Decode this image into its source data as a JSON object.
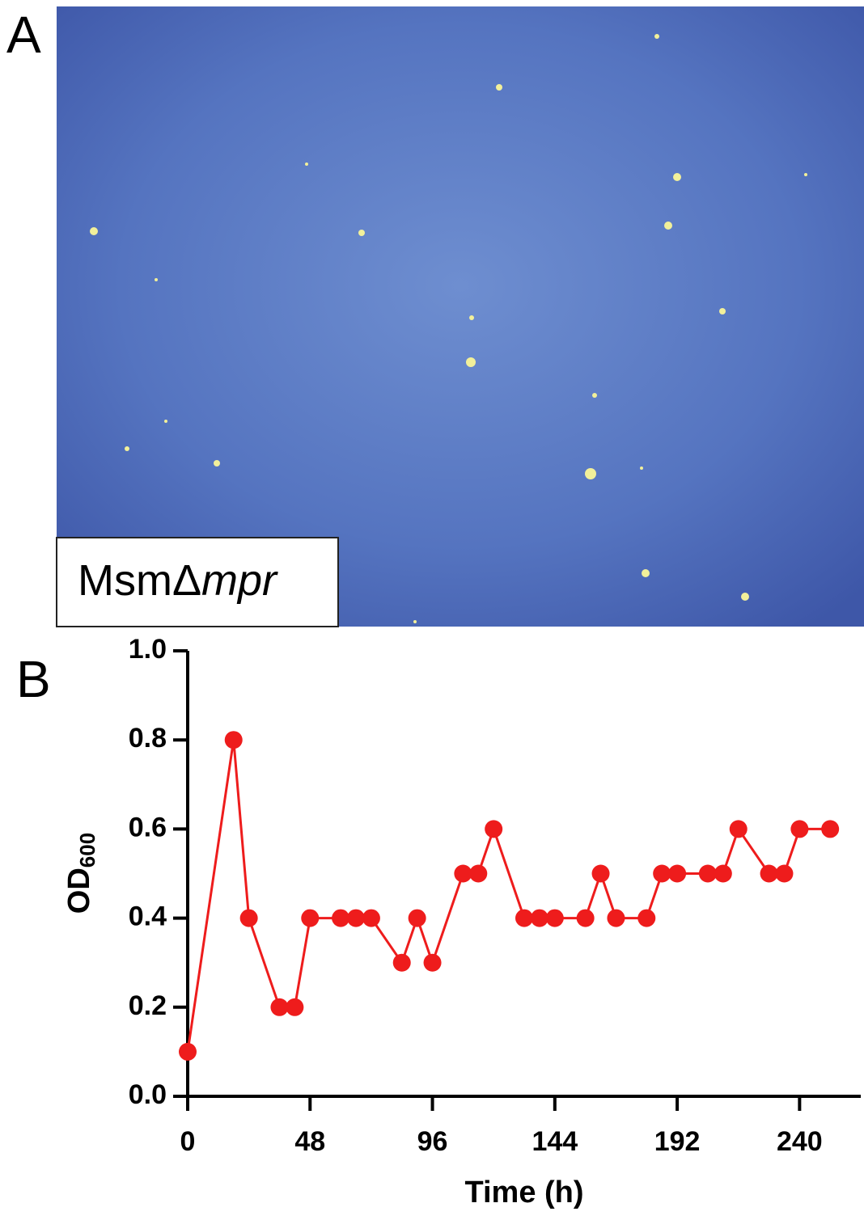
{
  "panel_labels": [
    "A",
    "B"
  ],
  "image_label": {
    "text": "MsmΔ",
    "italic": "mpr"
  },
  "chart_data": {
    "type": "line",
    "x_label": "Time (h)",
    "y_label": "OD",
    "y_label_subscript": "600",
    "x": [
      0,
      18,
      24,
      36,
      42,
      48,
      60,
      66,
      72,
      84,
      90,
      96,
      108,
      114,
      120,
      132,
      138,
      144,
      156,
      162,
      168,
      180,
      186,
      192,
      204,
      210,
      216,
      228,
      234,
      240,
      252
    ],
    "series": [
      {
        "color": "#ee1c1c",
        "values": [
          0.1,
          0.8,
          0.4,
          0.2,
          0.2,
          0.4,
          0.4,
          0.4,
          0.4,
          0.3,
          0.4,
          0.3,
          0.5,
          0.5,
          0.6,
          0.4,
          0.4,
          0.4,
          0.4,
          0.5,
          0.4,
          0.4,
          0.5,
          0.5,
          0.5,
          0.5,
          0.6,
          0.5,
          0.5,
          0.6,
          0.6
        ]
      }
    ],
    "xlim": [
      0,
      264
    ],
    "xticks": [
      0,
      48,
      96,
      144,
      192,
      240
    ],
    "ylim": [
      0,
      1
    ],
    "yticks": [
      {
        "value": 0,
        "label": "0.0"
      },
      {
        "value": 0.2,
        "label": "0.2"
      },
      {
        "value": 0.4,
        "label": "0.4"
      },
      {
        "value": 0.6,
        "label": "0.6"
      },
      {
        "value": 0.8,
        "label": "0.8"
      },
      {
        "value": 1,
        "label": "1.0"
      }
    ]
  }
}
